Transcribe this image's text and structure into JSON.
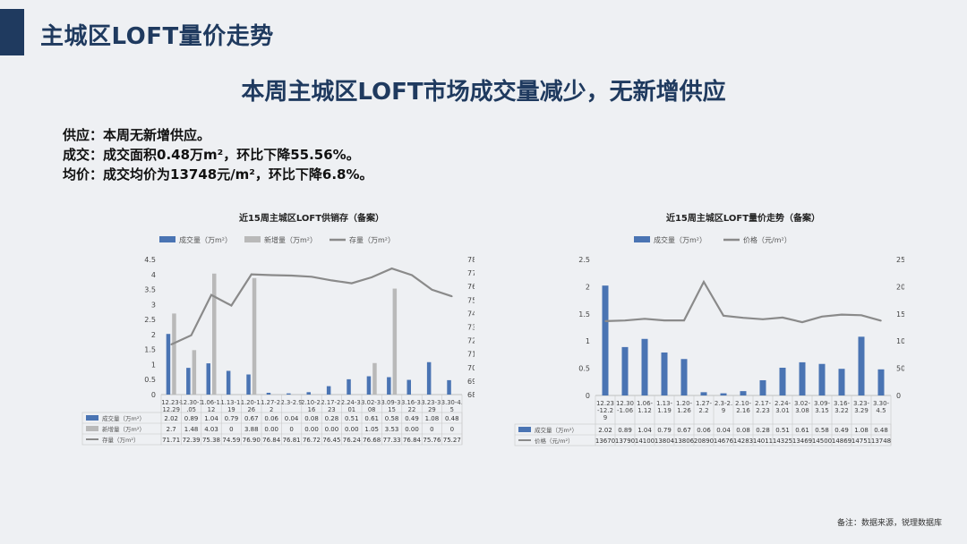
{
  "header": {
    "title": "主城区LOFT量价走势"
  },
  "headline": "本周主城区LOFT市场成交量减少，无新增供应",
  "summary": [
    {
      "label": "供应：",
      "text": "本周无新增供应。"
    },
    {
      "label": "成交：",
      "text": "成交面积0.48万m²，环比下降55.56%。"
    },
    {
      "label": "均价：",
      "text": "成交均价为13748元/m²，环比下降6.8%。"
    }
  ],
  "footnote": "备注：数据来源，锐理数据库",
  "colors": {
    "blue": "#4a74b3",
    "gray_bar": "#b9b9b9",
    "gray_line": "#8a8a8a",
    "navy": "#1f3a5f"
  },
  "chart_data": [
    {
      "type": "bar",
      "title": "近15周主城区LOFT供销存（备案）",
      "categories": [
        "12.23-12.29",
        "12.30-1.05",
        "1.06-1.12",
        "1.13-1.19",
        "1.20-1.26",
        "1.27-2.2",
        "2.3-2.9",
        "2.10-2.16",
        "2.17-2.23",
        "2.24-3.01",
        "3.02-3.08",
        "3.09-3.15",
        "3.16-3.22",
        "3.23-3.29",
        "3.30-4.5"
      ],
      "category_labels": [
        "12.23-\n12.29",
        "12.30-1\n.05",
        "1.06-1.\n12",
        "1.13-1.\n19",
        "1.20-1.\n26",
        "1.27-2.\n2",
        "2.3-2.9",
        "2.10-2.\n16",
        "2.17-2.\n23",
        "2.24-3.\n01",
        "3.02-3.\n08",
        "3.09-3.\n15",
        "3.16-3.\n22",
        "3.23-3.\n29",
        "3.30-4.\n5"
      ],
      "series": [
        {
          "name": "成交量（万m²）",
          "type": "bar",
          "axis": "left",
          "values": [
            2.02,
            0.89,
            1.04,
            0.79,
            0.67,
            0.06,
            0.04,
            0.08,
            0.28,
            0.51,
            0.61,
            0.58,
            0.49,
            1.08,
            0.48
          ],
          "table_values": [
            "2.02",
            "0.89",
            "1.04",
            "0.79",
            "0.67",
            "0.06",
            "0.04",
            "0.08",
            "0.28",
            "0.51",
            "0.61",
            "0.58",
            "0.49",
            "1.08",
            "0.48"
          ]
        },
        {
          "name": "新增量（万m²）",
          "type": "bar",
          "axis": "left",
          "values": [
            2.7,
            1.48,
            4.03,
            0,
            3.88,
            0,
            0,
            0,
            0,
            0,
            1.05,
            3.53,
            0,
            0,
            0
          ],
          "table_values": [
            "2.7",
            "1.48",
            "4.03",
            "0",
            "3.88",
            "0.00",
            "0",
            "0.00",
            "0.00",
            "0.00",
            "1.05",
            "3.53",
            "0.00",
            "0",
            "0"
          ]
        },
        {
          "name": "存量（万m²）",
          "type": "line",
          "axis": "right",
          "values": [
            71.71,
            72.39,
            75.38,
            74.59,
            76.9,
            76.84,
            76.81,
            76.72,
            76.45,
            76.24,
            76.68,
            77.33,
            76.84,
            75.76,
            75.27
          ],
          "table_values": [
            "71.71",
            "72.39",
            "75.38",
            "74.59",
            "76.90",
            "76.84",
            "76.81",
            "76.72",
            "76.45",
            "76.24",
            "76.68",
            "77.33",
            "76.84",
            "75.76",
            "75.27"
          ]
        }
      ],
      "ylim_left": [
        0,
        4.5
      ],
      "yticks_left": [
        "0",
        "0.5",
        "1",
        "1.5",
        "2",
        "2.5",
        "3",
        "3.5",
        "4",
        "4.5"
      ],
      "ylim_right": [
        68,
        78
      ],
      "yticks_right": [
        "68",
        "69",
        "70",
        "71",
        "72",
        "73",
        "74",
        "75",
        "76",
        "77",
        "78"
      ]
    },
    {
      "type": "bar",
      "title": "近15周主城区LOFT量价走势（备案）",
      "categories": [
        "12.23-12.29",
        "12.30-1.06",
        "1.06-1.12",
        "1.13-1.19",
        "1.20-1.26",
        "1.27-2.2",
        "2.3-2.9",
        "2.10-2.16",
        "2.17-2.23",
        "2.24-3.01",
        "3.02-3.08",
        "3.09-3.15",
        "3.16-3.22",
        "3.23-3.29",
        "3.30-4.5"
      ],
      "category_labels": [
        "12.23\n-12.2\n9",
        "12.30\n-1.06",
        "1.06-\n1.12",
        "1.13-\n1.19",
        "1.20-\n1.26",
        "1.27-\n2.2",
        "2.3-2.\n9",
        "2.10-\n2.16",
        "2.17-\n2.23",
        "2.24-\n3.01",
        "3.02-\n3.08",
        "3.09-\n3.15",
        "3.16-\n3.22",
        "3.23-\n3.29",
        "3.30-\n4.5"
      ],
      "series": [
        {
          "name": "成交量（万m²）",
          "type": "bar",
          "axis": "left",
          "values": [
            2.02,
            0.89,
            1.04,
            0.79,
            0.67,
            0.06,
            0.04,
            0.08,
            0.28,
            0.51,
            0.61,
            0.58,
            0.49,
            1.08,
            0.48
          ],
          "table_values": [
            "2.02",
            "0.89",
            "1.04",
            "0.79",
            "0.67",
            "0.06",
            "0.04",
            "0.08",
            "0.28",
            "0.51",
            "0.61",
            "0.58",
            "0.49",
            "1.08",
            "0.48"
          ]
        },
        {
          "name": "价格（元/m²）",
          "type": "line",
          "axis": "right",
          "values": [
            13670,
            13790,
            14100,
            13804,
            13806,
            20890,
            14676,
            14283,
            14011,
            14325,
            13469,
            14500,
            14869,
            14751,
            13748
          ],
          "table_values": [
            "13670",
            "13790",
            "14100",
            "13804",
            "13806",
            "20890",
            "14676",
            "14283",
            "14011",
            "14325",
            "13469",
            "14500",
            "14869",
            "14751",
            "13748"
          ]
        }
      ],
      "ylim_left": [
        0,
        2.5
      ],
      "yticks_left": [
        "0",
        "0.5",
        "1",
        "1.5",
        "2",
        "2.5"
      ],
      "ylim_right": [
        0,
        25000
      ],
      "yticks_right": [
        "0",
        "5000",
        "10000",
        "15000",
        "20000",
        "25000"
      ]
    }
  ]
}
